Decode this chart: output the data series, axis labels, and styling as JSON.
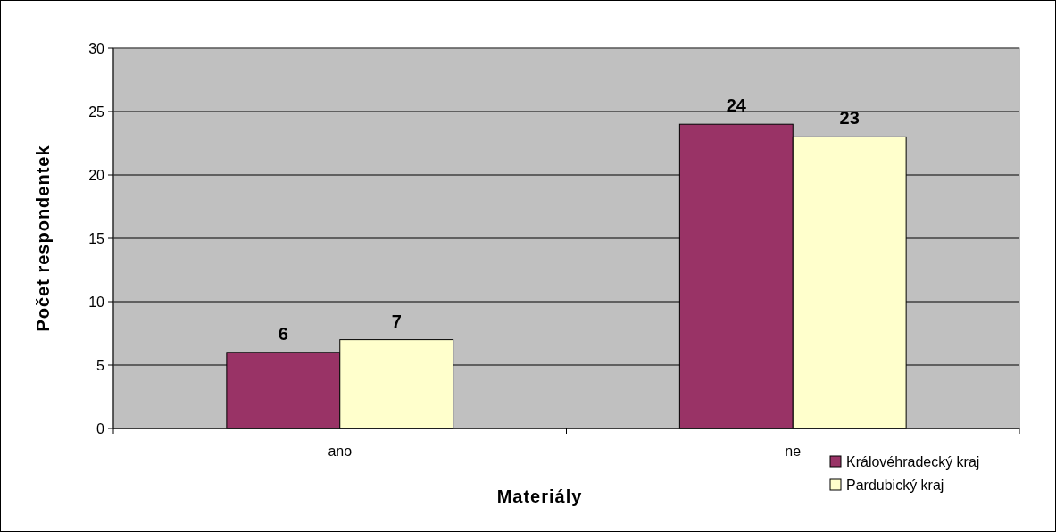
{
  "chart_data": {
    "type": "bar",
    "xlabel": "Materiály",
    "ylabel": "Počet respondentek",
    "categories": [
      "ano",
      "ne"
    ],
    "series": [
      {
        "name": "Královéhradecký kraj",
        "color": "#993366",
        "values": [
          6,
          24
        ]
      },
      {
        "name": "Pardubický kraj",
        "color": "#ffffcc",
        "values": [
          7,
          23
        ]
      }
    ],
    "ylim": [
      0,
      30
    ],
    "yticks": [
      0,
      5,
      10,
      15,
      20,
      25,
      30
    ],
    "grid": "y",
    "legend": "bottom right",
    "data_labels": true
  }
}
